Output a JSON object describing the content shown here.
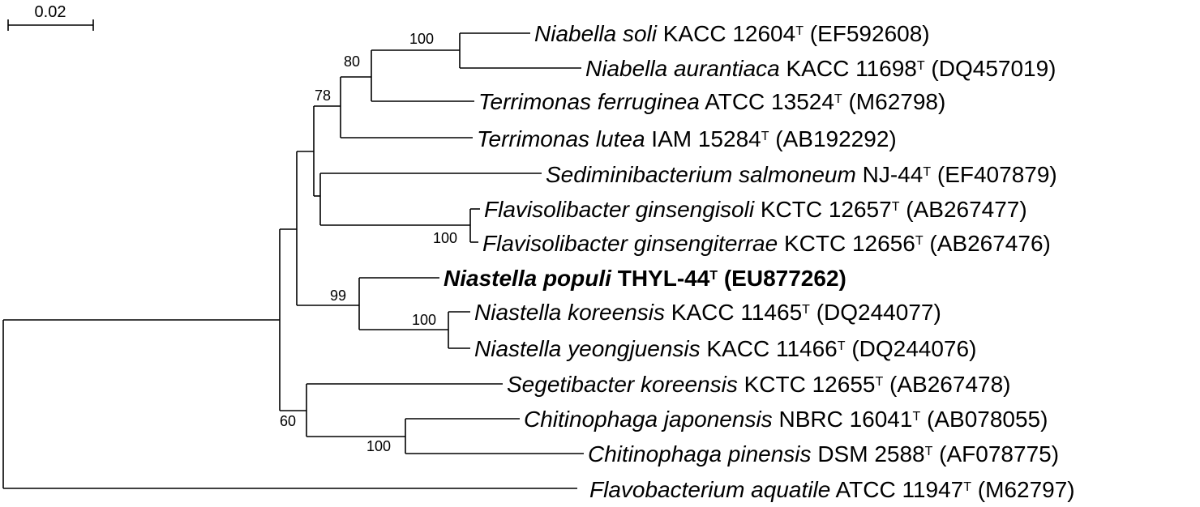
{
  "scale_bar": {
    "label": "0.02"
  },
  "taxa": [
    {
      "id": "t1",
      "species": "Niabella soli",
      "strain": "KACC 12604",
      "accession": "(EF592608)",
      "bold": false
    },
    {
      "id": "t2",
      "species": "Niabella aurantiaca",
      "strain": "KACC 11698",
      "accession": "(DQ457019)",
      "bold": false
    },
    {
      "id": "t3",
      "species": "Terrimonas ferruginea",
      "strain": "ATCC 13524",
      "accession": "(M62798)",
      "bold": false
    },
    {
      "id": "t4",
      "species": "Terrimonas lutea",
      "strain": "IAM 15284",
      "accession": "(AB192292)",
      "bold": false
    },
    {
      "id": "t5",
      "species": "Sediminibacterium salmoneum",
      "strain": "NJ-44",
      "accession": "(EF407879)",
      "bold": false
    },
    {
      "id": "t6",
      "species": "Flavisolibacter ginsengisoli",
      "strain": "KCTC 12657",
      "accession": "(AB267477)",
      "bold": false
    },
    {
      "id": "t7",
      "species": "Flavisolibacter ginsengiterrae",
      "strain": "KCTC 12656",
      "accession": "(AB267476)",
      "bold": false
    },
    {
      "id": "t8",
      "species": "Niastella populi",
      "strain": "THYL-44",
      "accession": "(EU877262)",
      "bold": true
    },
    {
      "id": "t9",
      "species": "Niastella koreensis",
      "strain": "KACC 11465",
      "accession": "(DQ244077)",
      "bold": false
    },
    {
      "id": "t10",
      "species": "Niastella yeongjuensis",
      "strain": "KACC 11466",
      "accession": "(DQ244076)",
      "bold": false
    },
    {
      "id": "t11",
      "species": "Segetibacter koreensis",
      "strain": "KCTC 12655",
      "accession": "(AB267478)",
      "bold": false
    },
    {
      "id": "t12",
      "species": "Chitinophaga japonensis",
      "strain": "NBRC 16041",
      "accession": "(AB078055)",
      "bold": false
    },
    {
      "id": "t13",
      "species": "Chitinophaga pinensis",
      "strain": "DSM 2588",
      "accession": "(AF078775)",
      "bold": false
    },
    {
      "id": "t14",
      "species": "Flavobacterium aquatile",
      "strain": "ATCC 11947",
      "accession": "(M62797)",
      "bold": false
    }
  ],
  "type_strain_mark": "T",
  "bootstrap": [
    {
      "id": "b100a",
      "value": "100"
    },
    {
      "id": "b80",
      "value": "80"
    },
    {
      "id": "b78",
      "value": "78"
    },
    {
      "id": "b100b",
      "value": "100"
    },
    {
      "id": "b99",
      "value": "99"
    },
    {
      "id": "b100c",
      "value": "100"
    },
    {
      "id": "b60",
      "value": "60"
    },
    {
      "id": "b100d",
      "value": "100"
    }
  ]
}
